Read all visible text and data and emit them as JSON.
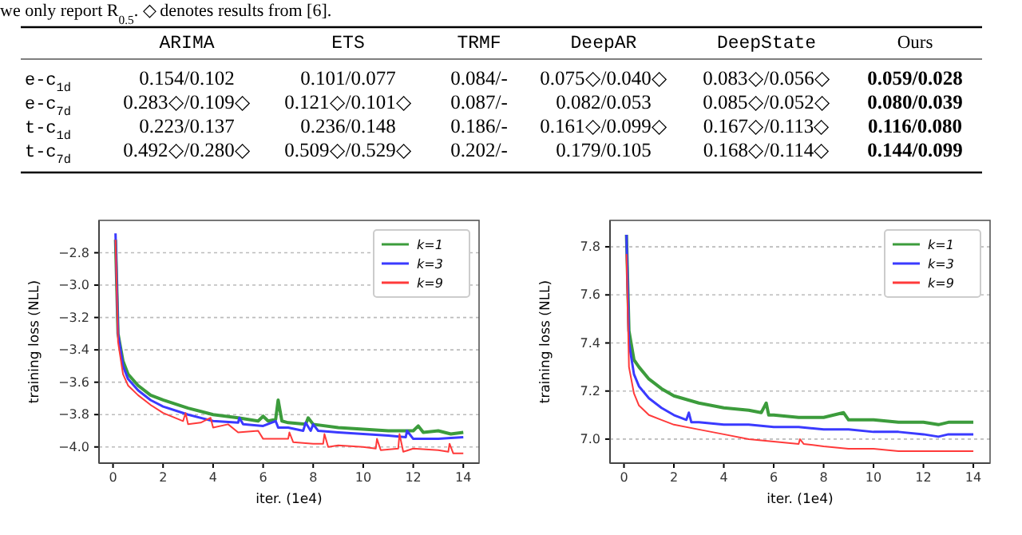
{
  "chart_data": [
    {
      "type": "other",
      "annotations": [
        "we only report R$_{0.5}$. ◇ denotes results from [6]."
      ],
      "categories": [
        null,
        "ARIMA",
        "ETS",
        "TRMF",
        "DeepAR",
        "DeepState",
        "Ours"
      ],
      "y_categories": [
        "e-c$_{1d}$",
        "e-c$_{7d}$",
        "t-c$_{1d}$",
        "t-c$_{7d}$"
      ],
      "cell_labels": [
        [
          "0.154/0.102",
          "0.101/0.077",
          "0.084/-",
          "0.075◇/0.040◇",
          "0.083◇/0.056◇",
          "0.059/0.028"
        ],
        [
          "0.283◇/0.109◇",
          "0.121◇/0.101◇",
          "0.087/-",
          "0.082/0.053",
          "0.085◇/0.052◇",
          "0.080/0.039"
        ],
        [
          "0.223/0.137",
          "0.236/0.148",
          "0.186/-",
          "0.161◇/0.099◇",
          "0.167◇/0.113◇",
          "0.116/0.080"
        ],
        [
          "0.492◇/0.280◇",
          "0.509◇/0.529◇",
          "0.202/-",
          "0.179/0.105",
          "0.168◇/0.114◇",
          "0.144/0.099"
        ]
      ]
    },
    {
      "type": "line",
      "xlabel": "iter. (1e4)",
      "ylabel": "training loss (NLL)",
      "xlim": [
        -0.56,
        14.63
      ],
      "ylim": [
        -4.1,
        -2.6
      ],
      "xticks": [
        0,
        2,
        4,
        6,
        8,
        10,
        12,
        14
      ],
      "yticks": [
        {
          "value": -4,
          "label": "−4.0"
        },
        -3.8,
        -3.6,
        -3.4,
        -3.2,
        {
          "value": -3,
          "label": "−3.0"
        },
        -2.8
      ],
      "grid": "y",
      "legend": "top right",
      "series": [
        {
          "name": "k=1",
          "color": "#3c9c3c",
          "x": [
            0.1,
            0.2,
            0.4,
            0.6,
            1,
            1.5,
            2,
            3,
            4,
            5,
            5.8,
            6,
            6.2,
            6.5,
            6.6,
            6.75,
            7,
            7.7,
            7.8,
            8,
            9,
            10,
            11,
            12,
            12.2,
            12.4,
            13,
            13.5,
            14
          ],
          "values": [
            -2.72,
            -3.3,
            -3.47,
            -3.55,
            -3.62,
            -3.68,
            -3.71,
            -3.76,
            -3.8,
            -3.82,
            -3.84,
            -3.81,
            -3.84,
            -3.83,
            -3.71,
            -3.84,
            -3.85,
            -3.86,
            -3.82,
            -3.86,
            -3.88,
            -3.89,
            -3.9,
            -3.9,
            -3.87,
            -3.91,
            -3.9,
            -3.92,
            -3.91
          ]
        },
        {
          "name": "k=3",
          "color": "#3a3aff",
          "x": [
            0.1,
            0.2,
            0.4,
            0.6,
            1,
            1.5,
            2,
            3,
            4,
            5,
            5.05,
            5.2,
            6,
            6.5,
            6.6,
            7,
            7.6,
            7.7,
            7.9,
            8,
            8.2,
            9,
            10,
            11,
            11.7,
            11.75,
            12,
            13,
            14
          ],
          "values": [
            -2.68,
            -3.3,
            -3.5,
            -3.58,
            -3.65,
            -3.71,
            -3.75,
            -3.8,
            -3.84,
            -3.85,
            -3.82,
            -3.86,
            -3.87,
            -3.84,
            -3.88,
            -3.88,
            -3.9,
            -3.85,
            -3.9,
            -3.86,
            -3.9,
            -3.91,
            -3.92,
            -3.93,
            -3.94,
            -3.9,
            -3.95,
            -3.95,
            -3.94
          ]
        },
        {
          "name": "k=9",
          "color": "#ff3a3a",
          "x": [
            0.1,
            0.2,
            0.4,
            0.6,
            1,
            1.5,
            2,
            2.8,
            2.9,
            3,
            3.5,
            3.9,
            4,
            4.6,
            5,
            5.8,
            6,
            7,
            7.05,
            7.2,
            8,
            8.4,
            8.45,
            8.6,
            9,
            10,
            10.5,
            10.55,
            10.7,
            11.4,
            11.45,
            11.6,
            12,
            13,
            13.4,
            13.45,
            13.6,
            14
          ],
          "values": [
            -2.72,
            -3.35,
            -3.55,
            -3.62,
            -3.68,
            -3.74,
            -3.79,
            -3.84,
            -3.79,
            -3.86,
            -3.85,
            -3.82,
            -3.88,
            -3.86,
            -3.91,
            -3.9,
            -3.95,
            -3.95,
            -3.91,
            -3.97,
            -3.98,
            -3.98,
            -3.92,
            -4.0,
            -3.99,
            -4.0,
            -4.01,
            -3.95,
            -4.02,
            -4.01,
            -3.92,
            -4.03,
            -4.01,
            -4.02,
            -4.03,
            -3.98,
            -4.04,
            -4.04
          ]
        }
      ]
    },
    {
      "type": "line",
      "xlabel": "iter. (1e4)",
      "ylabel": "training loss (NLL)",
      "xlim": [
        -0.56,
        14.67
      ],
      "ylim": [
        6.9,
        7.91
      ],
      "xticks": [
        0,
        2,
        4,
        6,
        8,
        10,
        12,
        14
      ],
      "yticks": [
        {
          "value": 7,
          "label": "7.0"
        },
        7.2,
        7.4,
        7.6,
        7.8
      ],
      "grid": "y",
      "legend": "top right",
      "series": [
        {
          "name": "k=1",
          "color": "#3c9c3c",
          "x": [
            0.1,
            0.2,
            0.4,
            0.6,
            1,
            1.5,
            2,
            3,
            4,
            5,
            5.5,
            5.7,
            5.8,
            6,
            7,
            8,
            8.8,
            9,
            10,
            11,
            12,
            12.6,
            13,
            14
          ],
          "values": [
            7.85,
            7.45,
            7.33,
            7.3,
            7.25,
            7.21,
            7.18,
            7.15,
            7.13,
            7.12,
            7.11,
            7.15,
            7.1,
            7.1,
            7.09,
            7.09,
            7.11,
            7.08,
            7.08,
            7.07,
            7.07,
            7.06,
            7.07,
            7.07
          ]
        },
        {
          "name": "k=3",
          "color": "#3a3aff",
          "x": [
            0.1,
            0.2,
            0.4,
            0.6,
            1,
            1.5,
            2,
            2.5,
            2.6,
            2.7,
            3,
            4,
            5,
            6,
            7,
            8,
            9,
            10,
            11,
            12,
            12.6,
            13,
            14
          ],
          "values": [
            7.85,
            7.4,
            7.27,
            7.22,
            7.17,
            7.13,
            7.1,
            7.08,
            7.11,
            7.07,
            7.07,
            7.06,
            7.06,
            7.05,
            7.05,
            7.04,
            7.04,
            7.03,
            7.03,
            7.02,
            7.01,
            7.02,
            7.02
          ]
        },
        {
          "name": "k=9",
          "color": "#ff3a3a",
          "x": [
            0.1,
            0.2,
            0.4,
            0.6,
            1,
            1.5,
            2,
            3,
            4,
            5,
            6,
            7,
            7.05,
            7.2,
            8,
            9,
            10,
            11,
            12,
            13,
            14
          ],
          "values": [
            7.77,
            7.3,
            7.19,
            7.14,
            7.1,
            7.08,
            7.06,
            7.04,
            7.02,
            7,
            6.99,
            6.98,
            7,
            6.98,
            6.97,
            6.96,
            6.96,
            6.95,
            6.95,
            6.95,
            6.95
          ]
        }
      ]
    }
  ]
}
